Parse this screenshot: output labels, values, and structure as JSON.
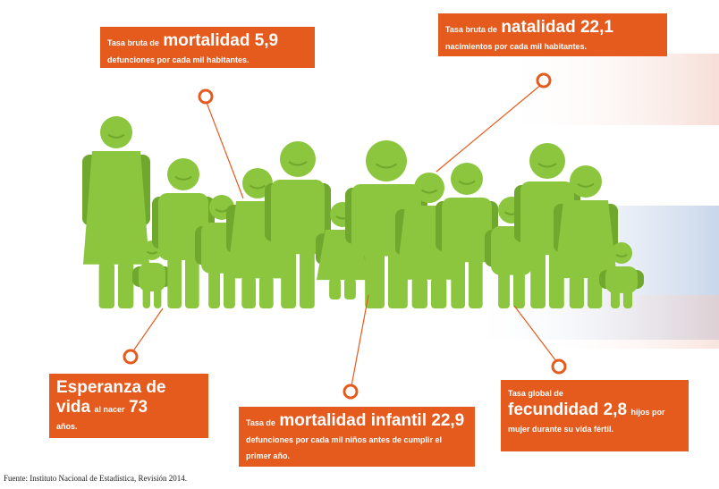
{
  "callouts": [
    {
      "prefix": "Tasa bruta de",
      "highlight": "mortalidad 5,9",
      "detail": "defunciones por cada mil habitantes."
    },
    {
      "prefix": "Tasa bruta de",
      "highlight": "natalidad 22,1",
      "detail": "nacimientos por cada mil habitantes."
    },
    {
      "prefix": "Esperanza de vida",
      "middle": "al nacer",
      "highlight": "73",
      "detail": "años."
    },
    {
      "prefix": "Tasa de",
      "highlight": "mortalidad infantil 22,9",
      "detail": "defunciones por cada mil niños antes de cumplir el primer año."
    },
    {
      "prefix": "Tasa global de",
      "highlight": "fecundidad 2,8",
      "detail": "hijos por mujer durante su vida fértil."
    }
  ],
  "source": "Fuente: Instituto Nacional de Estadística, Revisión 2014."
}
